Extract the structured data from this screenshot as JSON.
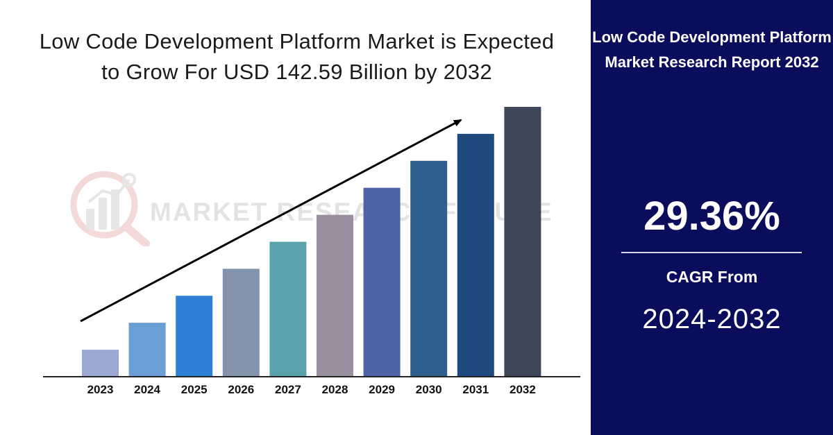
{
  "chart_data": {
    "type": "bar",
    "title": "Low Code Development Platform Market is Expected to Grow For USD 142.59 Billion by 2032",
    "categories": [
      "2023",
      "2024",
      "2025",
      "2026",
      "2027",
      "2028",
      "2029",
      "2030",
      "2031",
      "2032"
    ],
    "values": [
      1,
      2,
      3,
      4,
      5,
      6,
      7,
      8,
      9,
      10
    ],
    "colors": [
      "#9aa8d3",
      "#6a9fd5",
      "#2f7fd8",
      "#8293ab",
      "#5aa3ad",
      "#9a8fa0",
      "#4e63a6",
      "#2e5f8e",
      "#1e4a7e",
      "#3d4757"
    ],
    "xlabel": "",
    "ylabel": "",
    "ylim": [
      0,
      10
    ],
    "grid": false,
    "trend_arrow": true
  },
  "watermark": {
    "text": "MARKET RESEARCH FUTURE",
    "icon": "magnifier-chart-icon"
  },
  "panel": {
    "title": "Low Code Development Platform Market Research Report 2032",
    "cagr_value": "29.36%",
    "cagr_label": "CAGR From",
    "cagr_period": "2024-2032",
    "background": "#0a0c5c"
  }
}
